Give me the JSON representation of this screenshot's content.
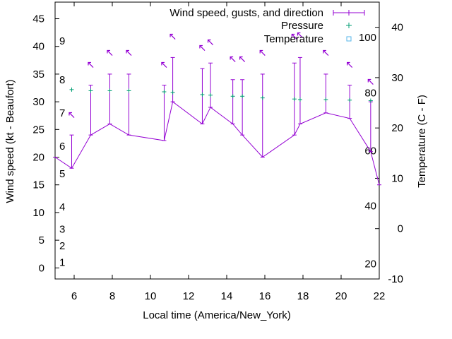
{
  "chart_data": {
    "type": "line",
    "title": "",
    "xlabel": "Local time (America/New_York)",
    "ylabel": "Wind speed (kt - Beaufort)",
    "y2label": "Temperature (C - F)",
    "xlim": [
      5,
      22
    ],
    "ylim": [
      -2,
      48
    ],
    "y2lim": [
      -10,
      45
    ],
    "xticks": [
      "6",
      "8",
      "10",
      "12",
      "14",
      "16",
      "18",
      "20",
      "22"
    ],
    "yticks": [
      "0",
      "5",
      "10",
      "15",
      "20",
      "25",
      "30",
      "35",
      "40",
      "45"
    ],
    "y2ticks": [
      "-10",
      "0",
      "10",
      "20",
      "30",
      "40"
    ],
    "beaufort_labels": [
      {
        "label": "1",
        "y": 1
      },
      {
        "label": "2",
        "y": 4
      },
      {
        "label": "3",
        "y": 7
      },
      {
        "label": "4",
        "y": 11
      },
      {
        "label": "5",
        "y": 17
      },
      {
        "label": "6",
        "y": 22
      },
      {
        "label": "7",
        "y": 28
      },
      {
        "label": "8",
        "y": 34
      },
      {
        "label": "9",
        "y": 41
      }
    ],
    "fahrenheit_labels": [
      {
        "label": "20",
        "y2": -7
      },
      {
        "label": "40",
        "y2": 4.5
      },
      {
        "label": "60",
        "y2": 15.5
      },
      {
        "label": "80",
        "y2": 27
      },
      {
        "label": "100",
        "y2": 38
      }
    ],
    "legend": {
      "position": "top-right",
      "entries": [
        "Wind speed, gusts, and direction",
        "Pressure",
        "Temperature"
      ]
    },
    "colors": {
      "wind": "#9400d3",
      "pressure": "#009e73",
      "temperature": "#56b4e9"
    },
    "series": [
      {
        "name": "Wind speed, gusts, and direction",
        "x": [
          5,
          5.87,
          6.87,
          7.87,
          8.87,
          10.72,
          11.17,
          12.72,
          13.15,
          14.32,
          14.82,
          15.88,
          17.55,
          17.85,
          19.2,
          20.45,
          21.55,
          22
        ],
        "y": [
          20,
          18,
          24,
          26,
          24,
          23,
          30,
          26,
          29,
          26,
          24,
          20,
          24,
          26,
          28,
          27,
          21,
          15
        ],
        "gusts": [
          null,
          24,
          33,
          35,
          35,
          33,
          38,
          36,
          37,
          34,
          34,
          35,
          37,
          38,
          35,
          33,
          30,
          null
        ],
        "direction_deg": [
          null,
          135,
          135,
          135,
          135,
          135,
          135,
          135,
          135,
          135,
          135,
          135,
          135,
          135,
          135,
          135,
          135,
          null
        ]
      },
      {
        "name": "Pressure",
        "x": [
          5.87,
          6.87,
          7.87,
          8.87,
          10.72,
          11.17,
          12.72,
          13.15,
          14.32,
          14.82,
          15.88,
          17.55,
          17.85,
          19.2,
          20.45,
          21.55
        ],
        "y": [
          32.2,
          32,
          32,
          32,
          31.8,
          31.7,
          31.3,
          31.2,
          31,
          31,
          30.7,
          30.5,
          30.4,
          30.4,
          30.3,
          30.2
        ]
      },
      {
        "name": "Temperature",
        "x": [],
        "y": []
      }
    ]
  }
}
